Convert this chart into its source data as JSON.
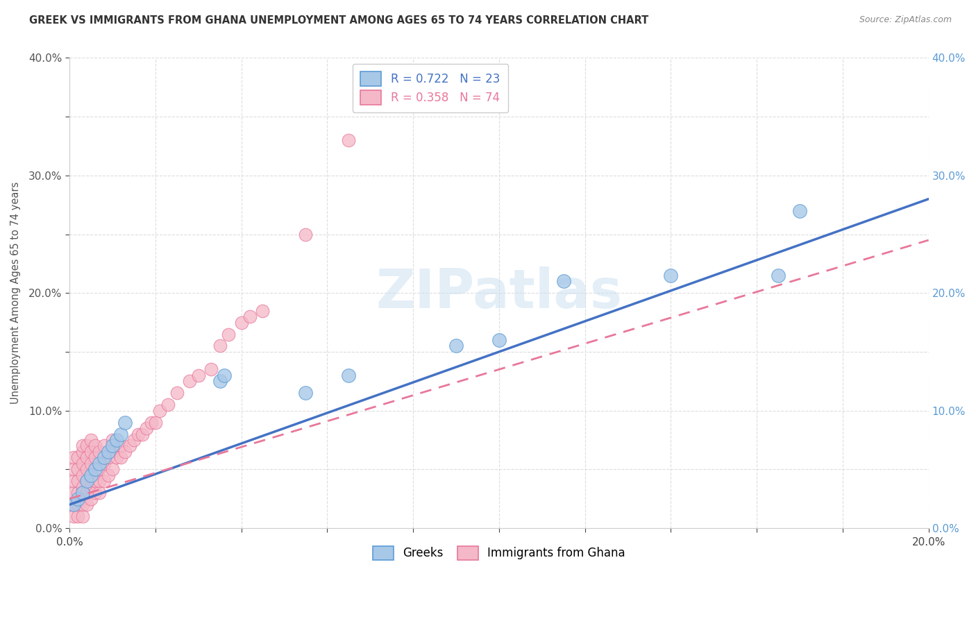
{
  "title": "GREEK VS IMMIGRANTS FROM GHANA UNEMPLOYMENT AMONG AGES 65 TO 74 YEARS CORRELATION CHART",
  "source": "Source: ZipAtlas.com",
  "xlim": [
    0.0,
    0.2
  ],
  "ylim": [
    0.0,
    0.4
  ],
  "legend_R_blue": "R = 0.722",
  "legend_N_blue": "N = 23",
  "legend_R_pink": "R = 0.358",
  "legend_N_pink": "N = 74",
  "legend_label_blue": "Greeks",
  "legend_label_pink": "Immigrants from Ghana",
  "blue_fill": "#a8c8e8",
  "blue_edge": "#5b9bd5",
  "pink_fill": "#f4b8c8",
  "pink_edge": "#e8789a",
  "blue_line": "#4472c4",
  "pink_line": "#e06080",
  "watermark": "ZIPatlas",
  "blue_line_intercept": 0.02,
  "blue_line_slope": 1.3,
  "pink_line_intercept": 0.025,
  "pink_line_slope": 1.1,
  "greek_x": [
    0.001,
    0.002,
    0.003,
    0.004,
    0.005,
    0.006,
    0.007,
    0.008,
    0.009,
    0.01,
    0.011,
    0.012,
    0.013,
    0.035,
    0.036,
    0.055,
    0.065,
    0.09,
    0.1,
    0.115,
    0.14,
    0.165,
    0.17
  ],
  "greek_y": [
    0.02,
    0.025,
    0.03,
    0.04,
    0.045,
    0.05,
    0.055,
    0.06,
    0.065,
    0.07,
    0.075,
    0.08,
    0.09,
    0.125,
    0.13,
    0.115,
    0.13,
    0.155,
    0.16,
    0.21,
    0.215,
    0.215,
    0.27
  ],
  "ghana_x": [
    0.0,
    0.001,
    0.001,
    0.001,
    0.001,
    0.001,
    0.001,
    0.002,
    0.002,
    0.002,
    0.002,
    0.002,
    0.002,
    0.003,
    0.003,
    0.003,
    0.003,
    0.003,
    0.003,
    0.003,
    0.003,
    0.004,
    0.004,
    0.004,
    0.004,
    0.004,
    0.004,
    0.005,
    0.005,
    0.005,
    0.005,
    0.005,
    0.005,
    0.006,
    0.006,
    0.006,
    0.006,
    0.006,
    0.007,
    0.007,
    0.007,
    0.007,
    0.008,
    0.008,
    0.008,
    0.009,
    0.009,
    0.01,
    0.01,
    0.01,
    0.011,
    0.012,
    0.012,
    0.013,
    0.014,
    0.015,
    0.016,
    0.017,
    0.018,
    0.019,
    0.02,
    0.021,
    0.023,
    0.025,
    0.028,
    0.03,
    0.033,
    0.035,
    0.037,
    0.04,
    0.042,
    0.045,
    0.055,
    0.065
  ],
  "ghana_y": [
    0.02,
    0.01,
    0.02,
    0.03,
    0.04,
    0.05,
    0.06,
    0.01,
    0.02,
    0.03,
    0.04,
    0.05,
    0.06,
    0.01,
    0.02,
    0.025,
    0.035,
    0.045,
    0.055,
    0.065,
    0.07,
    0.02,
    0.03,
    0.04,
    0.05,
    0.06,
    0.07,
    0.025,
    0.035,
    0.045,
    0.055,
    0.065,
    0.075,
    0.03,
    0.04,
    0.05,
    0.06,
    0.07,
    0.03,
    0.04,
    0.05,
    0.065,
    0.04,
    0.055,
    0.07,
    0.045,
    0.06,
    0.05,
    0.065,
    0.075,
    0.06,
    0.06,
    0.07,
    0.065,
    0.07,
    0.075,
    0.08,
    0.08,
    0.085,
    0.09,
    0.09,
    0.1,
    0.105,
    0.115,
    0.125,
    0.13,
    0.135,
    0.155,
    0.165,
    0.175,
    0.18,
    0.185,
    0.25,
    0.33
  ]
}
